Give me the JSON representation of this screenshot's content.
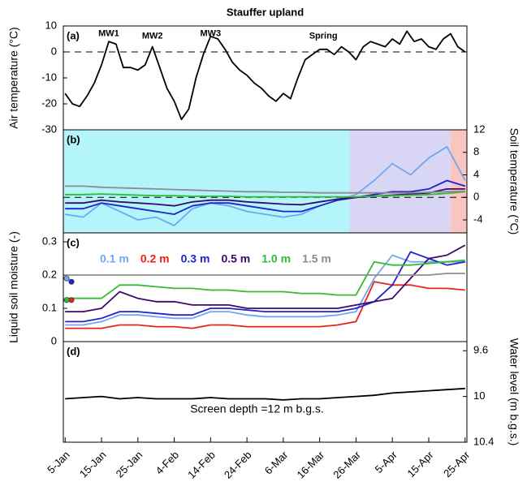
{
  "chart_data": [
    {
      "type": "line",
      "title": "Stauffer upland",
      "panel_label": "(a)",
      "ylabel": "Air temperature (°C)",
      "yaxis_side": "left",
      "xlim": [
        4.5,
        115.5
      ],
      "ylim": [
        -30,
        10
      ],
      "yticks": [
        -30,
        -20,
        -10,
        0,
        10
      ],
      "hline": 0,
      "annotations": [
        "MW1",
        "MW2",
        "MW3",
        "Spring"
      ],
      "x": [
        5,
        7,
        9,
        11,
        13,
        15,
        17,
        19,
        21,
        23,
        25,
        27,
        29,
        31,
        33,
        35,
        37,
        39,
        41,
        43,
        45,
        47,
        49,
        51,
        53,
        55,
        57,
        59,
        61,
        63,
        65,
        67,
        69,
        71,
        73,
        75,
        77,
        79,
        81,
        83,
        85,
        87,
        89,
        91,
        93,
        95,
        97,
        99,
        101,
        103,
        105,
        107,
        109,
        111,
        113,
        115
      ],
      "series": [
        {
          "color": "#000000",
          "values": [
            -16,
            -20,
            -21,
            -17,
            -12,
            -5,
            4,
            3,
            -6,
            -6,
            -7,
            -5,
            2,
            -6,
            -14,
            -19,
            -26,
            -22,
            -10,
            -1,
            6,
            5,
            1,
            -4,
            -7,
            -9,
            -12,
            -14,
            -17,
            -19,
            -16,
            -18,
            -10,
            -3,
            -1,
            1,
            1,
            -1,
            2,
            0,
            -3,
            2,
            4,
            3,
            2,
            5,
            3,
            8,
            4,
            5,
            2,
            1,
            5,
            7,
            2,
            0
          ]
        }
      ]
    },
    {
      "type": "line",
      "panel_label": "(b)",
      "ylabel": "Soil temperature (°C)",
      "yaxis_side": "right",
      "xlim": [
        4.5,
        115.5
      ],
      "ylim": [
        -6.3,
        12
      ],
      "yticks": [
        -4,
        0,
        4,
        8,
        12
      ],
      "hline": 0,
      "bands": [
        {
          "from": 4.5,
          "to": 83.3,
          "color": "#b3f5fb"
        },
        {
          "from": 83.3,
          "to": 111,
          "color": "#d9d5f5"
        },
        {
          "from": 111,
          "to": 115.5,
          "color": "#f8c5c1"
        }
      ],
      "x": [
        5,
        10,
        15,
        20,
        25,
        30,
        35,
        40,
        45,
        50,
        55,
        60,
        65,
        70,
        75,
        80,
        85,
        90,
        95,
        100,
        105,
        110,
        115
      ],
      "series": [
        {
          "color": "#6fa8f0",
          "values": [
            -3,
            -3.5,
            -1,
            -2.5,
            -4,
            -3.5,
            -5,
            -2,
            -1,
            -1.5,
            -2.5,
            -3,
            -3.5,
            -3,
            -1.5,
            -0.5,
            0.5,
            3,
            6,
            4,
            7,
            9,
            3
          ]
        },
        {
          "color": "#2121d0",
          "values": [
            -2,
            -2,
            -1,
            -1.5,
            -2,
            -2.5,
            -3,
            -1.5,
            -1,
            -1,
            -1.5,
            -2,
            -2.5,
            -2.5,
            -1.5,
            -0.5,
            0,
            0.5,
            1,
            1,
            1.5,
            3,
            2
          ]
        },
        {
          "color": "#3c0a6e",
          "values": [
            -1,
            -1,
            -0.5,
            -0.8,
            -1,
            -1.2,
            -1.5,
            -0.8,
            -0.5,
            -0.5,
            -0.8,
            -1,
            -1.2,
            -1.3,
            -0.8,
            -0.3,
            0,
            0.2,
            0.4,
            0.6,
            0.8,
            1.5,
            1.5
          ]
        },
        {
          "color": "#33bb33",
          "values": [
            0.5,
            0.5,
            0.6,
            0.5,
            0.4,
            0.3,
            0.3,
            0.2,
            0.2,
            0.2,
            0.1,
            0.1,
            0.1,
            0.1,
            0.1,
            0.1,
            0.1,
            0.2,
            0.3,
            0.4,
            0.5,
            0.7,
            1
          ]
        },
        {
          "color": "#8c8c8c",
          "values": [
            2,
            2,
            1.8,
            1.7,
            1.6,
            1.5,
            1.4,
            1.3,
            1.2,
            1.1,
            1,
            1,
            0.9,
            0.9,
            0.8,
            0.8,
            0.8,
            0.8,
            0.8,
            0.8,
            0.9,
            1,
            1.1
          ]
        }
      ]
    },
    {
      "type": "line",
      "panel_label": "(c)",
      "ylabel": "Liquid soil moisture (-)",
      "yaxis_side": "left",
      "xlim": [
        4.5,
        115.5
      ],
      "ylim": [
        0,
        0.327
      ],
      "yticks": [
        0,
        0.1,
        0.2,
        0.3
      ],
      "x": [
        5,
        10,
        15,
        20,
        25,
        30,
        35,
        40,
        45,
        50,
        55,
        60,
        65,
        70,
        75,
        80,
        85,
        90,
        95,
        100,
        105,
        110,
        115
      ],
      "series": [
        {
          "name": "0.1 m",
          "color": "#6fa8f0",
          "start_marker": 0.19,
          "values": [
            0.05,
            0.05,
            0.06,
            0.08,
            0.08,
            0.075,
            0.07,
            0.07,
            0.09,
            0.09,
            0.08,
            0.075,
            0.075,
            0.075,
            0.075,
            0.08,
            0.09,
            0.19,
            0.26,
            0.24,
            0.24,
            0.24,
            0.24
          ]
        },
        {
          "name": "0.2 m",
          "color": "#e8231c",
          "start_marker": 0.125,
          "values": [
            0.04,
            0.04,
            0.04,
            0.05,
            0.05,
            0.045,
            0.045,
            0.04,
            0.05,
            0.05,
            0.045,
            0.045,
            0.045,
            0.045,
            0.045,
            0.05,
            0.06,
            0.18,
            0.17,
            0.17,
            0.16,
            0.16,
            0.155
          ]
        },
        {
          "name": "0.3 m",
          "color": "#2121d0",
          "start_marker": 0.18,
          "values": [
            0.06,
            0.06,
            0.07,
            0.09,
            0.09,
            0.085,
            0.08,
            0.08,
            0.1,
            0.1,
            0.095,
            0.09,
            0.09,
            0.09,
            0.09,
            0.09,
            0.1,
            0.12,
            0.17,
            0.27,
            0.25,
            0.23,
            0.24
          ]
        },
        {
          "name": "0.5 m",
          "color": "#3c0a6e",
          "values": [
            0.09,
            0.09,
            0.1,
            0.15,
            0.13,
            0.12,
            0.12,
            0.11,
            0.11,
            0.11,
            0.1,
            0.1,
            0.1,
            0.1,
            0.1,
            0.1,
            0.11,
            0.12,
            0.13,
            0.19,
            0.25,
            0.26,
            0.29
          ]
        },
        {
          "name": "1.0 m",
          "color": "#33bb33",
          "start_marker": 0.125,
          "values": [
            0.13,
            0.13,
            0.13,
            0.17,
            0.17,
            0.165,
            0.16,
            0.16,
            0.155,
            0.155,
            0.15,
            0.15,
            0.15,
            0.145,
            0.145,
            0.14,
            0.14,
            0.24,
            0.23,
            0.23,
            0.235,
            0.24,
            0.245
          ]
        },
        {
          "name": "1.5 m",
          "color": "#8c8c8c",
          "values": [
            0.2,
            0.2,
            0.2,
            0.2,
            0.2,
            0.2,
            0.2,
            0.2,
            0.2,
            0.2,
            0.2,
            0.2,
            0.2,
            0.2,
            0.2,
            0.2,
            0.2,
            0.2,
            0.2,
            0.2,
            0.2,
            0.205,
            0.205
          ]
        }
      ]
    },
    {
      "type": "line",
      "panel_label": "(d)",
      "ylabel": "Water level (m b.g.s.)",
      "yaxis_side": "right",
      "note": "Screen depth =12 m b.g.s.",
      "xlim": [
        4.5,
        115.5
      ],
      "ylim": [
        10.4,
        9.52
      ],
      "yticks": [
        9.6,
        10,
        10.4
      ],
      "xticks": [
        {
          "value": 5,
          "label": "5-Jan"
        },
        {
          "value": 15,
          "label": "15-Jan"
        },
        {
          "value": 25,
          "label": "25-Jan"
        },
        {
          "value": 35,
          "label": "4-Feb"
        },
        {
          "value": 45,
          "label": "14-Feb"
        },
        {
          "value": 55,
          "label": "24-Feb"
        },
        {
          "value": 65,
          "label": "6-Mar"
        },
        {
          "value": 75,
          "label": "16-Mar"
        },
        {
          "value": 85,
          "label": "26-Mar"
        },
        {
          "value": 95,
          "label": "5-Apr"
        },
        {
          "value": 105,
          "label": "15-Apr"
        },
        {
          "value": 115,
          "label": "25-Apr"
        }
      ],
      "x": [
        5,
        10,
        15,
        20,
        25,
        30,
        35,
        40,
        45,
        50,
        55,
        60,
        65,
        70,
        75,
        80,
        85,
        90,
        95,
        100,
        105,
        110,
        115
      ],
      "series": [
        {
          "color": "#000000",
          "values": [
            10.02,
            10.01,
            10.0,
            10.02,
            10.01,
            10.02,
            10.02,
            10.02,
            10.01,
            10.02,
            10.02,
            10.02,
            10.03,
            10.02,
            10.02,
            10.01,
            10.0,
            9.99,
            9.97,
            9.96,
            9.95,
            9.94,
            9.93
          ]
        }
      ]
    }
  ]
}
